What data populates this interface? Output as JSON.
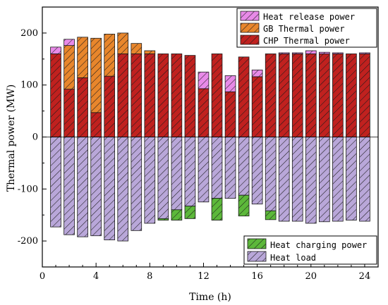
{
  "chart_data": {
    "type": "bar",
    "stacked": true,
    "x": [
      1,
      2,
      3,
      4,
      5,
      6,
      7,
      8,
      9,
      10,
      11,
      12,
      13,
      14,
      15,
      16,
      17,
      18,
      19,
      20,
      21,
      22,
      23,
      24
    ],
    "xlabel": "Time (h)",
    "ylabel": "Thermal power (MW)",
    "xlim": [
      0,
      25
    ],
    "ylim": [
      -250,
      250
    ],
    "xticks": [
      0,
      4,
      8,
      12,
      16,
      20,
      24
    ],
    "yticks": [
      -200,
      -100,
      0,
      100,
      200
    ],
    "grid": false,
    "series": [
      {
        "name": "CHP Thermal power",
        "color": "#c0211f",
        "hatch": "diagonal",
        "values": [
          160,
          92,
          114,
          47,
          117,
          160,
          160,
          160,
          160,
          160,
          157,
          93,
          160,
          87,
          154,
          116,
          160,
          160,
          160,
          160,
          160,
          160,
          160,
          160
        ]
      },
      {
        "name": "GB Thermal power",
        "color": "#e8862c",
        "hatch": "diagonal",
        "values": [
          0,
          84,
          78,
          143,
          81,
          40,
          20,
          6,
          0,
          0,
          0,
          0,
          0,
          0,
          0,
          0,
          0,
          0,
          0,
          0,
          0,
          0,
          0,
          0
        ]
      },
      {
        "name": "Heat release power",
        "color": "#e88ae8",
        "hatch": "diagonal",
        "values": [
          13,
          12,
          0,
          0,
          0,
          0,
          0,
          0,
          0,
          0,
          0,
          32,
          0,
          31,
          0,
          13,
          0,
          2,
          2,
          6,
          3,
          2,
          0,
          2
        ]
      },
      {
        "name": "Heat load",
        "color": "#b9a7d9",
        "hatch": "diagonal",
        "values": [
          -173,
          -188,
          -192,
          -190,
          -198,
          -200,
          -180,
          -166,
          -157,
          -140,
          -133,
          -125,
          -118,
          -118,
          -112,
          -129,
          -142,
          -162,
          -162,
          -166,
          -163,
          -162,
          -160,
          -162
        ]
      },
      {
        "name": "Heat charging power",
        "color": "#5cb83a",
        "hatch": "diagonal",
        "values": [
          0,
          0,
          0,
          0,
          0,
          0,
          0,
          0,
          -3,
          -20,
          -24,
          0,
          -42,
          0,
          -40,
          0,
          -17,
          0,
          0,
          0,
          0,
          0,
          0,
          0
        ]
      }
    ],
    "legends": [
      {
        "position": "top-right",
        "entries": [
          "Heat release power",
          "GB Thermal power",
          "CHP Thermal power"
        ]
      },
      {
        "position": "bottom-right",
        "entries": [
          "Heat charging power",
          "Heat load"
        ]
      }
    ]
  }
}
